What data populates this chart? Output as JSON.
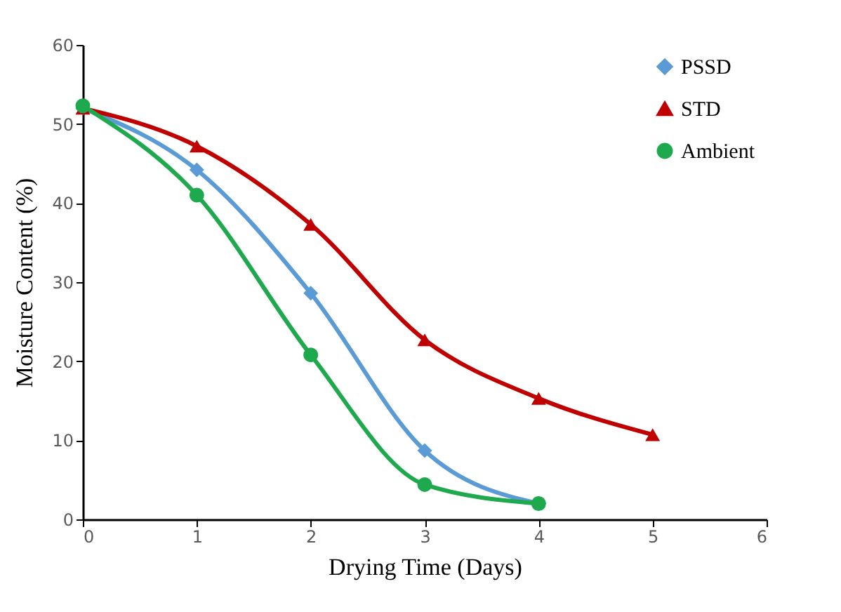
{
  "chart_data": {
    "type": "line",
    "xlabel": "Drying Time (Days)",
    "ylabel": "Moisture Content (%)",
    "x": [
      0,
      1,
      2,
      3,
      4,
      5
    ],
    "series": [
      {
        "name": "PSSD",
        "color": "#5b9bd5",
        "marker": "diamond",
        "values": [
          52,
          44.2,
          28.6,
          8.7,
          2,
          null
        ]
      },
      {
        "name": "STD",
        "color": "#c00000",
        "marker": "triangle",
        "values": [
          52,
          47.2,
          37.3,
          22.7,
          15.3,
          10.7
        ]
      },
      {
        "name": "Ambient",
        "color": "#1fa94f",
        "marker": "circle",
        "values": [
          52.3,
          41,
          20.8,
          4.4,
          2,
          null
        ]
      }
    ],
    "xlim": [
      0,
      6
    ],
    "xticks": [
      0,
      1,
      2,
      3,
      4,
      5,
      6
    ],
    "ylim": [
      0,
      60
    ],
    "yticks": [
      0,
      10,
      20,
      30,
      40,
      50,
      60
    ],
    "grid": false,
    "legend": "top right",
    "line_style": "solid"
  }
}
